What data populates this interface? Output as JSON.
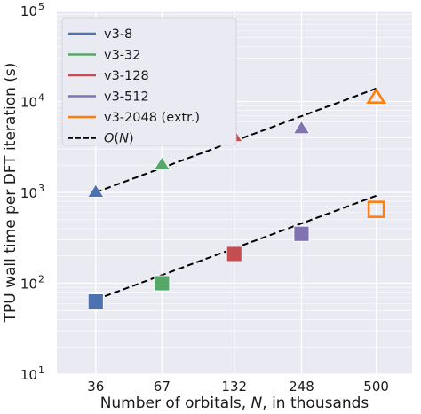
{
  "chart_data": {
    "type": "scatter",
    "log_x": true,
    "log_y": true,
    "x": [
      36,
      67,
      132,
      248,
      500
    ],
    "xticks": [
      "36",
      "67",
      "132",
      "248",
      "500"
    ],
    "xlabel": "Number of orbitals, N, in thousands",
    "xlabel_parts": [
      "Number of orbitals, ",
      "N",
      ", in thousands"
    ],
    "ylabel": "TPU wall time per DFT iteration (s)",
    "ylim": [
      10,
      100000
    ],
    "yticks": [
      {
        "base": "10",
        "exp": "1"
      },
      {
        "base": "10",
        "exp": "2"
      },
      {
        "base": "10",
        "exp": "3"
      },
      {
        "base": "10",
        "exp": "4"
      },
      {
        "base": "10",
        "exp": "5"
      }
    ],
    "grid": true,
    "legend_position": "top-left",
    "legend": [
      {
        "label": "v3-8",
        "color": "#4c72b0",
        "style": "solid"
      },
      {
        "label": "v3-32",
        "color": "#55a868",
        "style": "solid"
      },
      {
        "label": "v3-128",
        "color": "#c44e52",
        "style": "solid"
      },
      {
        "label": "v3-512",
        "color": "#8172b2",
        "style": "solid"
      },
      {
        "label": "v3-2048 (extr.)",
        "color": "#ff7f0e",
        "style": "solid"
      },
      {
        "label": "O(N)",
        "label_parts": [
          "O",
          "(",
          "N",
          ")"
        ],
        "color": "#000000",
        "style": "dashed"
      }
    ],
    "series": [
      {
        "name": "upper (triangles)",
        "marker": "triangle",
        "points": [
          {
            "x": 36,
            "y": 1000,
            "color": "#4c72b0",
            "filled": true
          },
          {
            "x": 67,
            "y": 2000,
            "color": "#55a868",
            "filled": true
          },
          {
            "x": 132,
            "y": 4100,
            "color": "#c44e52",
            "filled": true
          },
          {
            "x": 248,
            "y": 5000,
            "color": "#8172b2",
            "filled": true
          },
          {
            "x": 500,
            "y": 11000,
            "color": "#ff7f0e",
            "filled": false
          }
        ]
      },
      {
        "name": "lower (squares)",
        "marker": "square",
        "points": [
          {
            "x": 36,
            "y": 63,
            "color": "#4c72b0",
            "filled": true
          },
          {
            "x": 67,
            "y": 100,
            "color": "#55a868",
            "filled": true
          },
          {
            "x": 132,
            "y": 210,
            "color": "#c44e52",
            "filled": true
          },
          {
            "x": 248,
            "y": 350,
            "color": "#8172b2",
            "filled": true
          },
          {
            "x": 500,
            "y": 650,
            "color": "#ff7f0e",
            "filled": false
          }
        ]
      }
    ],
    "fit_lines": [
      {
        "name": "O(N) upper",
        "x": [
          36,
          500
        ],
        "y": [
          1000,
          13900
        ]
      },
      {
        "name": "O(N) lower",
        "x": [
          36,
          500
        ],
        "y": [
          66,
          917
        ]
      }
    ]
  }
}
